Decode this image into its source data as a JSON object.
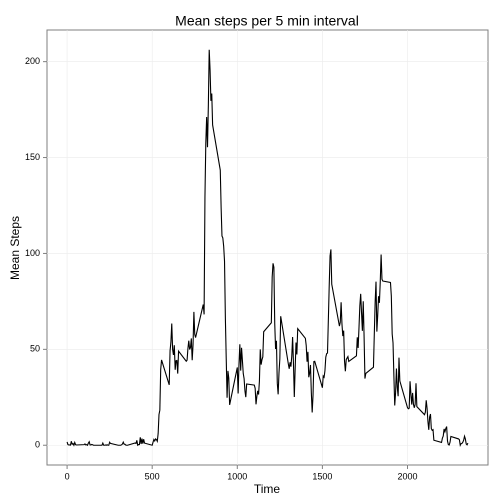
{
  "chart_data": {
    "type": "line",
    "title": "Mean steps per 5 min interval",
    "x_label": "Time",
    "y_label": "Mean Steps",
    "x": [
      0,
      5,
      10,
      15,
      20,
      25,
      30,
      35,
      40,
      45,
      50,
      55,
      100,
      105,
      110,
      115,
      120,
      125,
      130,
      135,
      140,
      145,
      150,
      155,
      200,
      205,
      210,
      215,
      220,
      225,
      230,
      235,
      240,
      245,
      250,
      255,
      300,
      305,
      310,
      315,
      320,
      325,
      330,
      335,
      340,
      345,
      350,
      355,
      400,
      405,
      410,
      415,
      420,
      425,
      430,
      435,
      440,
      445,
      450,
      455,
      500,
      505,
      510,
      515,
      520,
      525,
      530,
      535,
      540,
      545,
      550,
      555,
      600,
      605,
      610,
      615,
      620,
      625,
      630,
      635,
      640,
      645,
      650,
      655,
      700,
      705,
      710,
      715,
      720,
      725,
      730,
      735,
      740,
      745,
      750,
      755,
      800,
      805,
      810,
      815,
      820,
      825,
      830,
      835,
      840,
      845,
      850,
      855,
      900,
      905,
      910,
      915,
      920,
      925,
      930,
      935,
      940,
      945,
      950,
      955,
      1000,
      1005,
      1010,
      1015,
      1020,
      1025,
      1030,
      1035,
      1040,
      1045,
      1050,
      1055,
      1100,
      1105,
      1110,
      1115,
      1120,
      1125,
      1130,
      1135,
      1140,
      1145,
      1150,
      1155,
      1200,
      1205,
      1210,
      1215,
      1220,
      1225,
      1230,
      1235,
      1240,
      1245,
      1250,
      1255,
      1300,
      1305,
      1310,
      1315,
      1320,
      1325,
      1330,
      1335,
      1340,
      1345,
      1350,
      1355,
      1400,
      1405,
      1410,
      1415,
      1420,
      1425,
      1430,
      1435,
      1440,
      1445,
      1450,
      1455,
      1500,
      1505,
      1510,
      1515,
      1520,
      1525,
      1530,
      1535,
      1540,
      1545,
      1550,
      1555,
      1600,
      1605,
      1610,
      1615,
      1620,
      1625,
      1630,
      1635,
      1640,
      1645,
      1650,
      1655,
      1700,
      1705,
      1710,
      1715,
      1720,
      1725,
      1730,
      1735,
      1740,
      1745,
      1750,
      1755,
      1800,
      1805,
      1810,
      1815,
      1820,
      1825,
      1830,
      1835,
      1840,
      1845,
      1850,
      1855,
      1900,
      1905,
      1910,
      1915,
      1920,
      1925,
      1930,
      1935,
      1940,
      1945,
      1950,
      1955,
      2000,
      2005,
      2010,
      2015,
      2020,
      2025,
      2030,
      2035,
      2040,
      2045,
      2050,
      2055,
      2100,
      2105,
      2110,
      2115,
      2120,
      2125,
      2130,
      2135,
      2140,
      2145,
      2150,
      2155,
      2200,
      2205,
      2210,
      2215,
      2220,
      2225,
      2230,
      2235,
      2240,
      2245,
      2250,
      2255,
      2300,
      2305,
      2310,
      2315,
      2320,
      2325,
      2330,
      2335,
      2340,
      2345,
      2350,
      2355
    ],
    "series": [
      {
        "name": "Mean Steps",
        "color": "#000000",
        "values": [
          1.72,
          0.34,
          0.13,
          0.15,
          0.08,
          2.09,
          0.53,
          0.87,
          0,
          1.47,
          0.3,
          0.13,
          0.32,
          0.68,
          0.15,
          0.34,
          0,
          1.11,
          1.83,
          0.17,
          0.17,
          0.38,
          0.26,
          0,
          0,
          0,
          1.13,
          0,
          0,
          0.13,
          0,
          0.23,
          0,
          0,
          1.55,
          0.94,
          0,
          0,
          0,
          0,
          0.21,
          0.62,
          1.62,
          0.58,
          0.49,
          0.08,
          0,
          0,
          1.19,
          0.94,
          2.57,
          0,
          0.34,
          0.36,
          4.11,
          0.66,
          3.49,
          0.83,
          3.11,
          1.11,
          0,
          1.57,
          3,
          2.25,
          3.32,
          2.96,
          2.09,
          6.06,
          16.02,
          18.34,
          39.45,
          44.49,
          31.49,
          49.26,
          53.77,
          63.45,
          49.96,
          47.08,
          52.15,
          39.34,
          44.02,
          44.17,
          37.36,
          49.04,
          43.81,
          44.38,
          50.51,
          54.51,
          49.92,
          50.98,
          55.68,
          44.32,
          52.26,
          69.55,
          57.85,
          56.15,
          73.38,
          68.21,
          129.43,
          157.53,
          171.15,
          155.4,
          177.3,
          206.17,
          195.92,
          179.57,
          183.4,
          167.02,
          143.45,
          124.04,
          109.11,
          108.11,
          103.72,
          95.96,
          66.21,
          45.23,
          24.79,
          38.75,
          34.98,
          21.06,
          40.57,
          26.98,
          42.42,
          52.66,
          38.92,
          50.79,
          44.28,
          37.42,
          34.7,
          28.34,
          25.09,
          31.94,
          31.36,
          29.68,
          21.32,
          25.55,
          28.38,
          26.47,
          33.43,
          49.98,
          42.04,
          44.6,
          46.04,
          59.19,
          63.87,
          87.7,
          94.85,
          92.77,
          63.4,
          50.17,
          54.47,
          32.42,
          26.53,
          37.74,
          45.06,
          67.28,
          42.34,
          39.88,
          43.26,
          40.98,
          46.25,
          56.43,
          42.75,
          25.13,
          39.96,
          53.55,
          47.32,
          60.81,
          55.75,
          51.96,
          43.58,
          48.7,
          35.47,
          37.55,
          41.85,
          27.51,
          17.11,
          26.08,
          43.62,
          43.77,
          30.02,
          36.08,
          35.49,
          38.85,
          45.96,
          47.75,
          48.13,
          65.32,
          82.91,
          98.66,
          102.11,
          83.96,
          62.13,
          64.13,
          74.55,
          63.17,
          56.91,
          59.77,
          43.87,
          38.57,
          44.66,
          45.45,
          46.21,
          43.68,
          46.62,
          56.3,
          50.72,
          61.23,
          72.72,
          78.94,
          68.94,
          59.66,
          75.09,
          56.51,
          34.77,
          37.45,
          40.68,
          58.02,
          74.7,
          85.32,
          59.26,
          67.77,
          77.7,
          74.25,
          85.34,
          99.45,
          86.58,
          85.6,
          84.87,
          77.83,
          58.04,
          53.36,
          36.32,
          20.72,
          27.4,
          40.02,
          30.21,
          25.55,
          45.66,
          33.53,
          19.62,
          19.02,
          19.34,
          33.34,
          26.81,
          21.17,
          27.3,
          21.34,
          19.55,
          21.32,
          32.3,
          20.15,
          15.94,
          17.23,
          23.45,
          19.25,
          12.45,
          8.02,
          14.66,
          16.3,
          8.68,
          7.79,
          8.13,
          2.62,
          1.45,
          3.68,
          4.81,
          8.51,
          7.08,
          8.7,
          9.75,
          2.21,
          0.32,
          0.11,
          1.6,
          4.6,
          3.3,
          2.85,
          0,
          0.83,
          0.96,
          1.58,
          2.6,
          4.7,
          3.3,
          0.64,
          0.23,
          1.08
        ]
      }
    ],
    "xlim": [
      -118,
      2473
    ],
    "xticks": [
      0,
      500,
      1000,
      1500,
      2000
    ],
    "ylim": [
      -10.3,
      216.5
    ],
    "yticks": [
      0,
      50,
      100,
      150,
      200
    ],
    "grid": true
  }
}
